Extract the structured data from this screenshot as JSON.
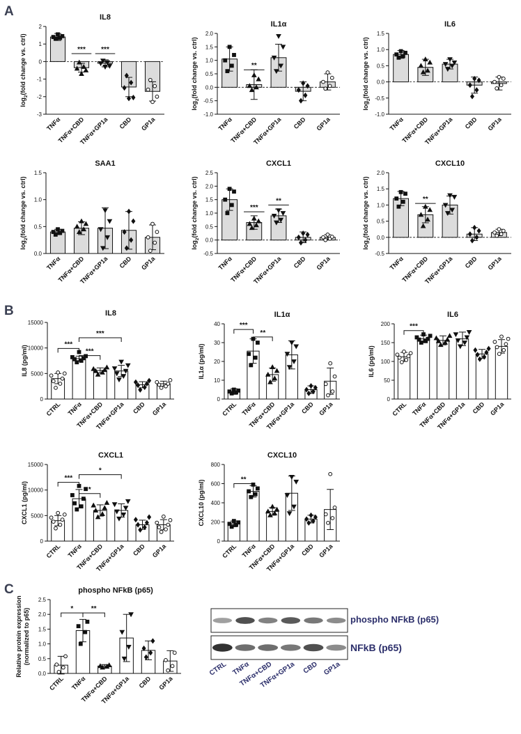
{
  "panel_labels": [
    "A",
    "B",
    "C"
  ],
  "colors": {
    "fill_a": "#dcdcdc",
    "fill_b": "#ffffff",
    "fill_c": "#ffffff",
    "stroke": "#111111",
    "label_blue": "#2c2f6b"
  },
  "chart_data": [
    {
      "type": "bar",
      "panel": "A",
      "title": "IL8",
      "ylabel_main": "log",
      "ylabel_sub": "2",
      "ylabel_rest": "(fold change vs. ctrl)",
      "categories": [
        "TNFα",
        "TNFα+CBD",
        "TNFα+GP1a",
        "CBD",
        "GP1a"
      ],
      "values": [
        1.4,
        -0.35,
        -0.1,
        -1.45,
        -1.7
      ],
      "errors": [
        0.2,
        0.25,
        0.2,
        0.55,
        0.55
      ],
      "ylim": [
        -3,
        2
      ],
      "yticks": [
        -3,
        -2,
        -1,
        0,
        1,
        2
      ],
      "markers": [
        "square",
        "triangle",
        "triangle-down",
        "diamond",
        "circle"
      ],
      "points": [
        [
          1.3,
          1.35,
          1.4,
          1.45,
          1.55
        ],
        [
          -0.05,
          -0.3,
          -0.4,
          -0.5,
          -0.7
        ],
        [
          0.05,
          -0.05,
          -0.1,
          -0.25,
          -0.3
        ],
        [
          -0.8,
          -1.2,
          -1.5,
          -2.05,
          -2.1
        ],
        [
          -1.05,
          -1.4,
          -1.6,
          -2.0,
          -2.3
        ]
      ],
      "sig": [
        {
          "text": "***",
          "cat": 1,
          "value": 0.45
        },
        {
          "text": "***",
          "cat": 2,
          "value": 0.45
        }
      ],
      "dashed_zero": true
    },
    {
      "type": "bar",
      "panel": "A",
      "title": "IL1α",
      "ylabel_main": "log",
      "ylabel_sub": "2",
      "ylabel_rest": "(fold change vs. ctrl)",
      "categories": [
        "TNFα",
        "TNFα+CBD",
        "TNFα+GP1a",
        "CBD",
        "GP1a"
      ],
      "values": [
        1.05,
        0.1,
        1.1,
        -0.15,
        0.2
      ],
      "errors": [
        0.45,
        0.55,
        0.5,
        0.35,
        0.3
      ],
      "ylim": [
        -1,
        2
      ],
      "yticks": [
        -1.0,
        -0.5,
        0.0,
        0.5,
        1.0,
        1.5,
        2.0
      ],
      "markers": [
        "square",
        "triangle",
        "triangle-down",
        "diamond",
        "circle"
      ],
      "points": [
        [
          0.6,
          0.8,
          1.0,
          1.2,
          1.5
        ],
        [
          -0.1,
          0.0,
          0.05,
          0.3,
          0.45
        ],
        [
          0.6,
          0.8,
          1.1,
          1.5,
          1.9
        ],
        [
          -0.5,
          -0.3,
          -0.1,
          0.05,
          0.15
        ],
        [
          -0.05,
          0.05,
          0.2,
          0.35,
          0.55
        ]
      ],
      "sig": [
        {
          "text": "**",
          "cat": 1,
          "value": 0.65
        }
      ],
      "dashed_zero": true
    },
    {
      "type": "bar",
      "panel": "A",
      "title": "IL6",
      "ylabel_main": "log",
      "ylabel_sub": "2",
      "ylabel_rest": "(fold change vs. ctrl)",
      "categories": [
        "TNFα",
        "TNFα+CBD",
        "TNFα+GP1a",
        "CBD",
        "GP1a"
      ],
      "values": [
        0.85,
        0.45,
        0.55,
        -0.1,
        -0.05
      ],
      "errors": [
        0.12,
        0.25,
        0.15,
        0.25,
        0.2
      ],
      "ylim": [
        -1,
        1.5
      ],
      "yticks": [
        -1.0,
        -0.5,
        0.0,
        0.5,
        1.0,
        1.5
      ],
      "markers": [
        "square",
        "triangle",
        "triangle-down",
        "diamond",
        "circle"
      ],
      "points": [
        [
          0.75,
          0.8,
          0.85,
          0.9,
          0.95
        ],
        [
          0.3,
          0.35,
          0.5,
          0.6,
          0.7
        ],
        [
          0.4,
          0.5,
          0.55,
          0.6,
          0.7
        ],
        [
          -0.45,
          -0.25,
          -0.1,
          0.05,
          0.1
        ],
        [
          -0.2,
          -0.1,
          0.0,
          0.1,
          0.15
        ]
      ],
      "sig": [],
      "dashed_zero": true
    },
    {
      "type": "bar",
      "panel": "A",
      "title": "SAA1",
      "ylabel_main": "log",
      "ylabel_sub": "2",
      "ylabel_rest": "(fold change vs. ctrl)",
      "categories": [
        "TNFα",
        "TNFα+CBD",
        "TNFα+GP1a",
        "CBD",
        "GP1a"
      ],
      "values": [
        0.4,
        0.47,
        0.47,
        0.43,
        0.3
      ],
      "errors": [
        0.05,
        0.12,
        0.38,
        0.35,
        0.23
      ],
      "ylim": [
        0,
        1.5
      ],
      "yticks": [
        0.0,
        0.5,
        1.0,
        1.5
      ],
      "markers": [
        "square",
        "triangle",
        "triangle-down",
        "diamond",
        "circle"
      ],
      "points": [
        [
          0.35,
          0.38,
          0.4,
          0.42,
          0.45
        ],
        [
          0.4,
          0.45,
          0.5,
          0.55,
          0.6
        ],
        [
          0.1,
          0.3,
          0.45,
          0.6,
          0.8
        ],
        [
          0.1,
          0.25,
          0.4,
          0.6,
          0.78
        ],
        [
          0.05,
          0.2,
          0.3,
          0.4,
          0.55
        ]
      ],
      "sig": [],
      "dashed_zero": false
    },
    {
      "type": "bar",
      "panel": "A",
      "title": "CXCL1",
      "ylabel_main": "log",
      "ylabel_sub": "2",
      "ylabel_rest": "(fold change vs. ctrl)",
      "categories": [
        "TNFα",
        "TNFα+CBD",
        "TNFα+GP1a",
        "CBD",
        "GP1a"
      ],
      "values": [
        1.5,
        0.65,
        0.9,
        0.1,
        0.1
      ],
      "errors": [
        0.4,
        0.25,
        0.25,
        0.2,
        0.1
      ],
      "ylim": [
        -0.5,
        2.5
      ],
      "yticks": [
        -0.5,
        0.0,
        0.5,
        1.0,
        1.5,
        2.0,
        2.5
      ],
      "markers": [
        "square",
        "triangle",
        "triangle-down",
        "diamond",
        "circle"
      ],
      "points": [
        [
          1.0,
          1.3,
          1.5,
          1.8,
          1.9
        ],
        [
          0.45,
          0.55,
          0.6,
          0.7,
          0.8
        ],
        [
          0.65,
          0.75,
          0.9,
          1.0,
          1.1
        ],
        [
          -0.1,
          0.0,
          0.1,
          0.2,
          0.25
        ],
        [
          0.0,
          0.05,
          0.1,
          0.12,
          0.2
        ]
      ],
      "sig": [
        {
          "text": "***",
          "cat": 1,
          "value": 1.05
        },
        {
          "text": "**",
          "cat": 2,
          "value": 1.3
        }
      ],
      "dashed_zero": true
    },
    {
      "type": "bar",
      "panel": "A",
      "title": "CXCL10",
      "ylabel_main": "log",
      "ylabel_sub": "2",
      "ylabel_rest": "(fold change vs. ctrl)",
      "categories": [
        "TNFα",
        "TNFα+CBD",
        "TNFα+GP1a",
        "CBD",
        "GP1a"
      ],
      "values": [
        1.2,
        0.7,
        1.0,
        0.1,
        0.15
      ],
      "errors": [
        0.22,
        0.25,
        0.28,
        0.2,
        0.1
      ],
      "ylim": [
        -0.5,
        2.0
      ],
      "yticks": [
        -0.5,
        0.0,
        0.5,
        1.0,
        1.5,
        2.0
      ],
      "markers": [
        "square",
        "triangle",
        "triangle-down",
        "diamond",
        "circle"
      ],
      "points": [
        [
          0.95,
          1.1,
          1.2,
          1.35,
          1.4
        ],
        [
          0.35,
          0.55,
          0.7,
          0.85,
          0.95
        ],
        [
          0.75,
          0.85,
          1.0,
          1.25,
          1.3
        ],
        [
          -0.1,
          0.0,
          0.1,
          0.2,
          0.3
        ],
        [
          0.05,
          0.1,
          0.15,
          0.2,
          0.25
        ]
      ],
      "sig": [
        {
          "text": "**",
          "cat": 1,
          "value": 1.05
        }
      ],
      "dashed_zero": true
    },
    {
      "type": "bar",
      "panel": "B",
      "title": "IL8",
      "ylabel": "IL8 (pg/ml)",
      "categories": [
        "CTRL",
        "TNFα",
        "TNFα+CBD",
        "TNFα+GP1a",
        "CBD",
        "GP1a"
      ],
      "values": [
        4000,
        7900,
        5600,
        5500,
        2800,
        3000
      ],
      "errors": [
        1000,
        500,
        500,
        1100,
        600,
        500
      ],
      "ylim": [
        0,
        15000
      ],
      "yticks": [
        0,
        5000,
        10000,
        15000
      ],
      "markers": [
        "circle",
        "square",
        "triangle",
        "triangle-down",
        "diamond",
        "circle"
      ],
      "points": [
        [
          2200,
          3000,
          3500,
          4000,
          4600,
          5000,
          5200
        ],
        [
          7200,
          7500,
          7800,
          8000,
          8200,
          8400,
          9200
        ],
        [
          4800,
          5200,
          5500,
          5700,
          5900,
          6200
        ],
        [
          3800,
          4500,
          5000,
          5500,
          6000,
          6600,
          7300
        ],
        [
          1800,
          2300,
          2700,
          3000,
          3300,
          3600
        ],
        [
          2200,
          2500,
          2800,
          3000,
          3300,
          3700
        ]
      ],
      "brackets": [
        {
          "text": "***",
          "from": 0,
          "to": 1,
          "value": 9900,
          "tick": 0
        },
        {
          "text": "***",
          "from": 1,
          "to": 2,
          "value": 8500,
          "tick": 0
        },
        {
          "text": "***",
          "from": 1,
          "to": 3,
          "value": 12000,
          "tick": 0
        }
      ],
      "dashed_zero": false
    },
    {
      "type": "bar",
      "panel": "B",
      "title": "IL1α",
      "ylabel": "IL1α (pg/ml)",
      "categories": [
        "CTRL",
        "TNFα",
        "TNFα+CBD",
        "TNFα+GP1a",
        "CBD",
        "GP1a"
      ],
      "values": [
        4,
        25.5,
        13,
        23.5,
        5,
        9.5
      ],
      "errors": [
        1.5,
        6.5,
        3.5,
        7.5,
        2,
        7
      ],
      "ylim": [
        0,
        40
      ],
      "yticks": [
        0,
        10,
        20,
        30,
        40
      ],
      "markers": [
        "square",
        "square",
        "triangle",
        "triangle-down",
        "diamond",
        "circle"
      ],
      "points": [
        [
          3,
          3.5,
          4,
          4.5,
          5
        ],
        [
          18,
          22,
          24,
          30,
          32
        ],
        [
          9,
          11,
          13,
          15,
          17
        ],
        [
          17,
          20,
          24,
          28,
          30
        ],
        [
          3,
          4,
          5,
          6,
          7
        ],
        [
          2,
          4,
          8,
          12,
          19
        ]
      ],
      "brackets": [
        {
          "text": "***",
          "from": 0,
          "to": 1,
          "value": 37,
          "tick": 1.8
        },
        {
          "text": "**",
          "from": 1,
          "to": 2,
          "value": 33,
          "tick": 1.8
        }
      ],
      "dashed_zero": false
    },
    {
      "type": "bar",
      "panel": "B",
      "title": "IL6",
      "ylabel": "IL6 (pg/ml)",
      "categories": [
        "CTRL",
        "TNFα",
        "TNFα+CBD",
        "TNFα+GP1a",
        "CBD",
        "GP1a"
      ],
      "values": [
        112,
        160,
        156,
        160,
        120,
        140
      ],
      "errors": [
        12,
        10,
        12,
        18,
        12,
        18
      ],
      "ylim": [
        0,
        200
      ],
      "yticks": [
        0,
        50,
        100,
        150,
        200
      ],
      "markers": [
        "circle",
        "square",
        "triangle",
        "triangle-down",
        "diamond",
        "circle"
      ],
      "points": [
        [
          98,
          104,
          110,
          114,
          118,
          122,
          126
        ],
        [
          150,
          154,
          158,
          160,
          164,
          168,
          172
        ],
        [
          144,
          150,
          154,
          158,
          162,
          168
        ],
        [
          140,
          150,
          156,
          164,
          172,
          178
        ],
        [
          106,
          112,
          118,
          124,
          130,
          134
        ],
        [
          120,
          130,
          138,
          146,
          152,
          160,
          166
        ]
      ],
      "brackets": [
        {
          "text": "***",
          "from": 0,
          "to": 1,
          "value": 182,
          "tick": 9
        }
      ],
      "dashed_zero": false
    },
    {
      "type": "bar",
      "panel": "B",
      "title": "CXCL1",
      "ylabel": "CXCL1 (pg/ml)",
      "categories": [
        "CTRL",
        "TNFα",
        "TNFα+CBD",
        "TNFα+GP1a",
        "CBD",
        "GP1a"
      ],
      "values": [
        4000,
        8300,
        6000,
        6000,
        3200,
        3200
      ],
      "errors": [
        1000,
        1800,
        1100,
        1300,
        900,
        1000
      ],
      "ylim": [
        0,
        15000
      ],
      "yticks": [
        0,
        5000,
        10000,
        15000
      ],
      "markers": [
        "circle",
        "square",
        "triangle",
        "triangle-down",
        "diamond",
        "circle"
      ],
      "points": [
        [
          2500,
          3200,
          3800,
          4200,
          4600,
          5200,
          5500
        ],
        [
          6200,
          6800,
          7400,
          8300,
          9000,
          10200,
          10800
        ],
        [
          4700,
          5300,
          6000,
          6500,
          7000,
          7500
        ],
        [
          4400,
          5200,
          5800,
          6500,
          7200,
          7800
        ],
        [
          2200,
          2700,
          3200,
          3600,
          4200,
          4700
        ],
        [
          1800,
          2300,
          2700,
          3200,
          3600,
          4100,
          4800
        ]
      ],
      "brackets": [
        {
          "text": "***",
          "from": 0,
          "to": 1,
          "value": 11500,
          "tick": 0
        },
        {
          "text": "*",
          "from": 1,
          "to": 2,
          "value": 9300,
          "tick": 0
        },
        {
          "text": "*",
          "from": 1,
          "to": 3,
          "value": 13000,
          "tick": 0
        }
      ],
      "dashed_zero": false
    },
    {
      "type": "bar",
      "panel": "B",
      "title": "CXCL10",
      "ylabel": "CXCL10 (pg/ml)",
      "categories": [
        "CTRL",
        "TNFα",
        "TNFα+CBD",
        "TNFα+GP1a",
        "CBD",
        "GP1a"
      ],
      "values": [
        180,
        520,
        310,
        500,
        230,
        330
      ],
      "errors": [
        30,
        60,
        40,
        180,
        40,
        210
      ],
      "ylim": [
        0,
        800
      ],
      "yticks": [
        0,
        200,
        400,
        600,
        800
      ],
      "markers": [
        "square",
        "square",
        "triangle",
        "triangle-down",
        "diamond",
        "circle"
      ],
      "points": [
        [
          150,
          170,
          180,
          195,
          210
        ],
        [
          460,
          490,
          520,
          550,
          590
        ],
        [
          270,
          290,
          310,
          330,
          360
        ],
        [
          290,
          360,
          480,
          620,
          670
        ],
        [
          190,
          210,
          230,
          250,
          270
        ],
        [
          190,
          240,
          280,
          350,
          700
        ]
      ],
      "brackets": [
        {
          "text": "**",
          "from": 0,
          "to": 1,
          "value": 600,
          "tick": 40
        }
      ],
      "dashed_zero": false
    },
    {
      "type": "bar",
      "panel": "C",
      "title": "phospho NFkB (p65)",
      "ylabel": "Relative protein expression",
      "ylabel_line2": "(normalized to p65)",
      "categories": [
        "CTRL",
        "TNFα",
        "TNFα+CBD",
        "TNFα+GP1a",
        "CBD",
        "GP1a"
      ],
      "values": [
        0.28,
        1.45,
        0.25,
        1.2,
        0.78,
        0.42
      ],
      "errors": [
        0.3,
        0.38,
        0.05,
        0.8,
        0.32,
        0.35
      ],
      "ylim": [
        0,
        2.5
      ],
      "yticks": [
        0.0,
        0.5,
        1.0,
        1.5,
        2.0,
        2.5
      ],
      "markers": [
        "circle",
        "square",
        "triangle",
        "triangle-down",
        "diamond",
        "circle"
      ],
      "points": [
        [
          0.05,
          0.2,
          0.3,
          0.58
        ],
        [
          1.0,
          1.4,
          1.6,
          1.75
        ],
        [
          0.2,
          0.23,
          0.25,
          0.28
        ],
        [
          0.5,
          0.9,
          1.4,
          2.0
        ],
        [
          0.55,
          0.7,
          0.85,
          1.1
        ],
        [
          0.1,
          0.25,
          0.45,
          0.7
        ]
      ],
      "brackets": [
        {
          "text": "*",
          "from": 0,
          "to": 1,
          "value": 2.05,
          "tick": 0
        },
        {
          "text": "**",
          "from": 1,
          "to": 2,
          "value": 2.05,
          "tick": 0
        }
      ],
      "dashed_zero": false
    }
  ],
  "western_blot": {
    "band_labels": [
      "phospho NFkB (p65)",
      "NFkB (p65)"
    ],
    "lanes": [
      "CTRL",
      "TNFα",
      "TNFα+CBD",
      "TNFα+GP1a",
      "CBD",
      "GP1a"
    ],
    "phospho_intensity": [
      0.35,
      0.75,
      0.5,
      0.7,
      0.55,
      0.45
    ],
    "total_intensity": [
      0.9,
      0.6,
      0.6,
      0.55,
      0.75,
      0.45
    ]
  }
}
